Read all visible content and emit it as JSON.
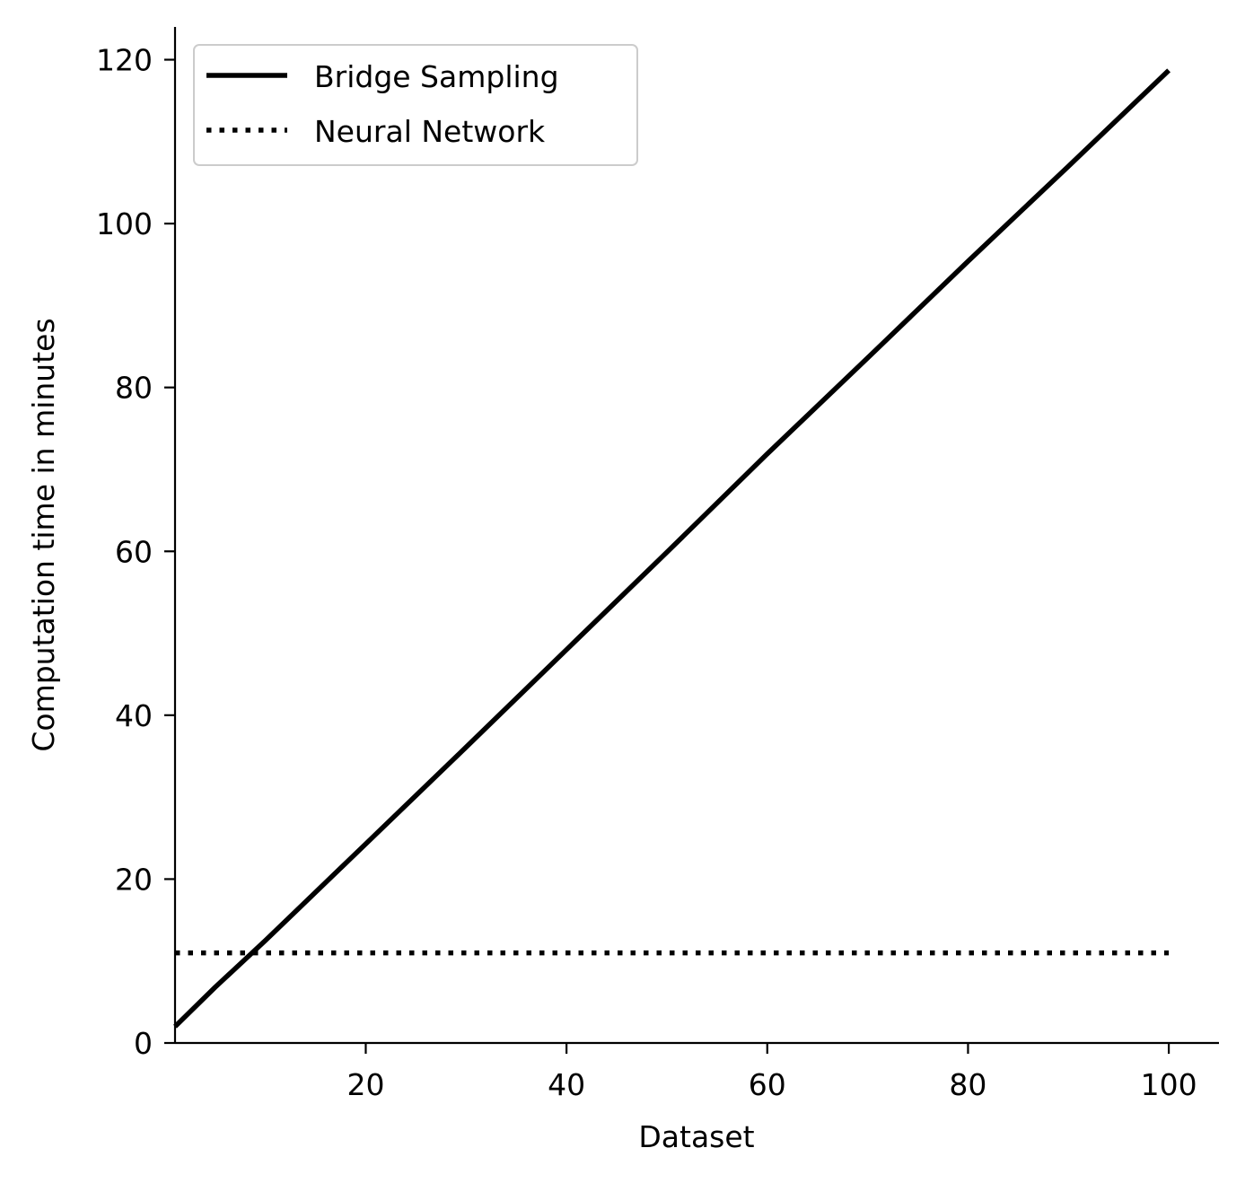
{
  "chart_data": {
    "type": "line",
    "title": "",
    "xlabel": "Dataset",
    "ylabel": "Computation time in minutes",
    "xlim": [
      1,
      105
    ],
    "ylim": [
      0,
      124
    ],
    "xticks": [
      20,
      40,
      60,
      80,
      100
    ],
    "xtick_labels": [
      "20",
      "40",
      "60",
      "80",
      "100"
    ],
    "yticks": [
      0,
      20,
      40,
      60,
      80,
      100,
      120
    ],
    "ytick_labels": [
      "0",
      "20",
      "40",
      "60",
      "80",
      "100",
      "120"
    ],
    "grid": false,
    "legend_position": "top-left",
    "series": [
      {
        "name": "Bridge Sampling",
        "style": "solid",
        "color": "#000000",
        "x": [
          1,
          5,
          10,
          20,
          30,
          40,
          50,
          60,
          70,
          80,
          90,
          100
        ],
        "values": [
          2.0,
          6.8,
          12.5,
          24.3,
          36.1,
          48.0,
          59.9,
          71.9,
          83.6,
          95.4,
          107.0,
          118.7
        ]
      },
      {
        "name": "Neural Network",
        "style": "dotted",
        "color": "#000000",
        "x": [
          1,
          100
        ],
        "values": [
          11.0,
          11.0
        ]
      }
    ]
  }
}
